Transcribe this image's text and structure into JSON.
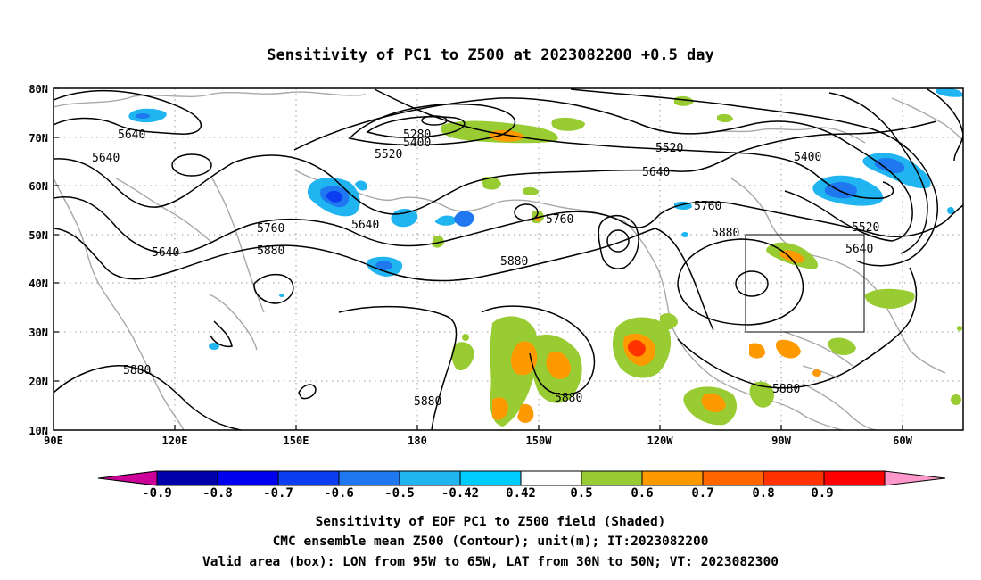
{
  "title": "Sensitivity of PC1 to Z500 at 2023082200 +0.5 day",
  "axes": {
    "lat_labels": [
      "80N",
      "70N",
      "60N",
      "50N",
      "40N",
      "30N",
      "20N",
      "10N"
    ],
    "lon_labels": [
      "90E",
      "120E",
      "150E",
      "180",
      "150W",
      "120W",
      "90W",
      "60W"
    ]
  },
  "contour_labels": [
    "5640",
    "5640",
    "5640",
    "5640",
    "5280",
    "5400",
    "5520",
    "5520",
    "5640",
    "5400",
    "5760",
    "5760",
    "5880",
    "5760",
    "5880",
    "5880",
    "5520",
    "5640",
    "5880",
    "5880",
    "5880",
    "5880"
  ],
  "colorbar": {
    "labels": [
      "-0.9",
      "-0.8",
      "-0.7",
      "-0.6",
      "-0.5",
      "-0.42",
      "0.42",
      "0.5",
      "0.6",
      "0.7",
      "0.8",
      "0.9"
    ],
    "colors": [
      "#cc0099",
      "#0000aa",
      "#0000ee",
      "#0a3ef0",
      "#1f78f0",
      "#20b4f0",
      "#00ccff",
      "#ffffff",
      "#99cc33",
      "#ff9900",
      "#ff6600",
      "#ff3300",
      "#ff0000",
      "#ff99cc"
    ]
  },
  "caption": {
    "line1": "Sensitivity of EOF PC1 to Z500 field (Shaded)",
    "line2": "CMC ensemble mean Z500 (Contour); unit(m); IT:2023082200",
    "line3": "Valid area (box): LON from 95W to 65W, LAT from 30N to 50N; VT: 2023082300"
  }
}
